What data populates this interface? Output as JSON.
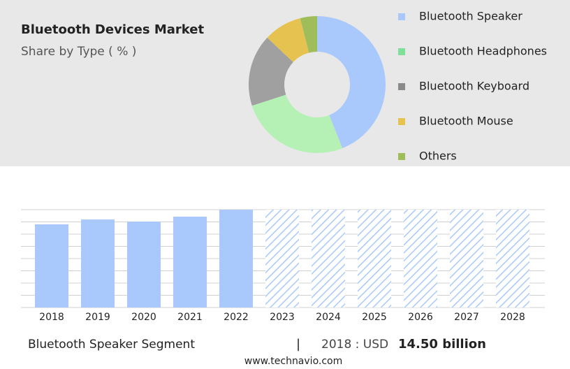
{
  "chart_data": [
    {
      "type": "donut",
      "title": "Bluetooth Devices Market",
      "subtitle": "Share by Type ( % )",
      "categories": [
        "Bluetooth Speaker",
        "Bluetooth Headphones",
        "Bluetooth Keyboard",
        "Bluetooth Mouse",
        "Others"
      ],
      "values": [
        44,
        26,
        17,
        9,
        4
      ],
      "colors": [
        "#a9c9fc",
        "#b5f0b5",
        "#a0a0a0",
        "#e6c350",
        "#9fbd5a"
      ],
      "legend_colors": [
        "#a9c9fc",
        "#7fdf9b",
        "#8a8a8a",
        "#e6c350",
        "#9fbd5a"
      ]
    },
    {
      "type": "bar",
      "categories": [
        "2018",
        "2019",
        "2020",
        "2021",
        "2022",
        "2023",
        "2024",
        "2025",
        "2026",
        "2027",
        "2028"
      ],
      "values": [
        14.5,
        15.35,
        14.99,
        15.84,
        17.06,
        null,
        null,
        null,
        null,
        null,
        null
      ],
      "color": "#a9c9fc",
      "ylim": [
        0,
        17.06
      ]
    }
  ],
  "footer": {
    "segment": "Bluetooth Speaker Segment",
    "separator": "|",
    "year_label": "2018 : USD",
    "value": "14.50 billion",
    "source": "www.technavio.com"
  }
}
